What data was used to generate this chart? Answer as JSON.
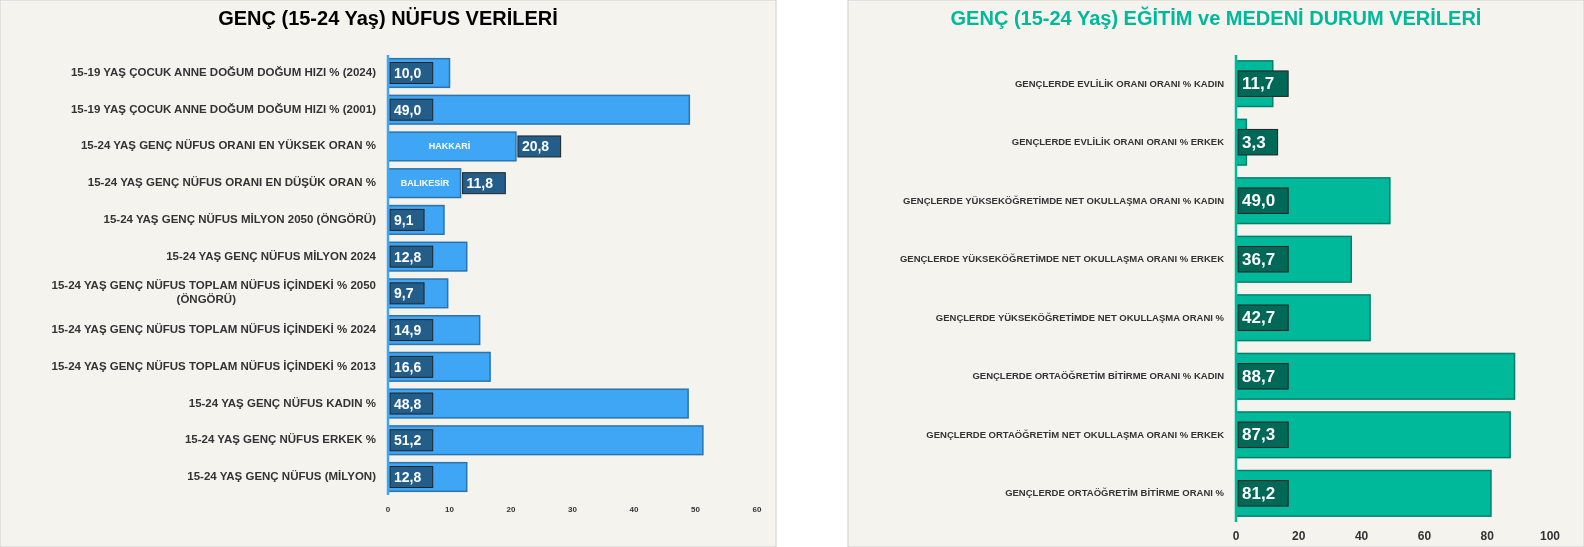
{
  "chart_data": [
    {
      "type": "bar",
      "orientation": "horizontal",
      "title": "GENÇ (15-24 Yaş) NÜFUS  VERİLERİ",
      "categories": [
        "15-19 YAŞ ÇOCUK ANNE DOĞUM DOĞUM HIZI  % (2024)",
        "15-19 YAŞ ÇOCUK ANNE DOĞUM DOĞUM HIZI  % (2001)",
        "15-24 YAŞ GENÇ NÜFUS ORANI EN YÜKSEK ORAN %",
        "15-24 YAŞ GENÇ NÜFUS ORANI EN DÜŞÜK ORAN %",
        "15-24 YAŞ GENÇ NÜFUS MİLYON 2050 (ÖNGÖRÜ)",
        "15-24 YAŞ GENÇ NÜFUS MİLYON 2024",
        "15-24 YAŞ GENÇ NÜFUS TOPLAM NÜFUS İÇİNDEKİ % 2050 (ÖNGÖRÜ)",
        "15-24 YAŞ GENÇ NÜFUS TOPLAM NÜFUS İÇİNDEKİ % 2024",
        "15-24 YAŞ GENÇ NÜFUS TOPLAM NÜFUS İÇİNDEKİ % 2013",
        "15-24 YAŞ GENÇ NÜFUS  KADIN %",
        "15-24 YAŞ GENÇ NÜFUS  ERKEK %",
        "15-24 YAŞ GENÇ NÜFUS (MİLYON)"
      ],
      "values": [
        10.0,
        49.0,
        20.8,
        11.8,
        9.1,
        12.8,
        9.7,
        14.9,
        16.6,
        48.8,
        51.2,
        12.8
      ],
      "value_labels": [
        "10,0",
        "49,0",
        "20,8",
        "11,8",
        "9,1",
        "12,8",
        "9,7",
        "14,9",
        "16,6",
        "48,8",
        "51,2",
        "12,8"
      ],
      "color": "#3ea6f5",
      "xlim": [
        0,
        60
      ],
      "xticks": [
        0,
        10,
        20,
        30,
        40,
        50,
        60
      ],
      "annotations": [
        {
          "text": "HAKKARİ",
          "x": 10,
          "y": "15-24 YAŞ GENÇ NÜFUS ORANI EN YÜKSEK ORAN %"
        },
        {
          "text": "BALIKESİR",
          "x": 6,
          "y": "15-24 YAŞ GENÇ NÜFUS ORANI EN DÜŞÜK ORAN %"
        }
      ]
    },
    {
      "type": "bar",
      "orientation": "horizontal",
      "title": "GENÇ  (15-24 Yaş) EĞİTİM ve MEDENİ DURUM  VERİLERİ",
      "categories": [
        "GENÇLERDE EVLİLİK ORANI   ORANI  %  KADIN",
        "GENÇLERDE EVLİLİK ORANI   ORANI  %  ERKEK",
        "GENÇLERDE YÜKSEKÖĞRETİMDE NET OKULLAŞMA  ORANI  %  KADIN",
        "GENÇLERDE YÜKSEKÖĞRETİMDE NET OKULLAŞMA  ORANI  %  ERKEK",
        "GENÇLERDE YÜKSEKÖĞRETİMDE NET OKULLAŞMA  ORANI  %",
        "GENÇLERDE ORTAÖĞRETİM BİTİRME ORANI  % KADIN",
        "GENÇLERDE ORTAÖĞRETİM NET OKULLAŞMA  ORANI  % ERKEK",
        "GENÇLERDE ORTAÖĞRETİM BİTİRME ORANI  %"
      ],
      "values": [
        11.7,
        3.3,
        49.0,
        36.7,
        42.7,
        88.7,
        87.3,
        81.2
      ],
      "value_labels": [
        "11,7",
        "3,3",
        "49,0",
        "36,7",
        "42,7",
        "88,7",
        "87,3",
        "81,2"
      ],
      "color": "#00b89a",
      "xlim": [
        0,
        100
      ],
      "xticks": [
        0,
        20,
        40,
        60,
        80,
        100
      ]
    }
  ]
}
